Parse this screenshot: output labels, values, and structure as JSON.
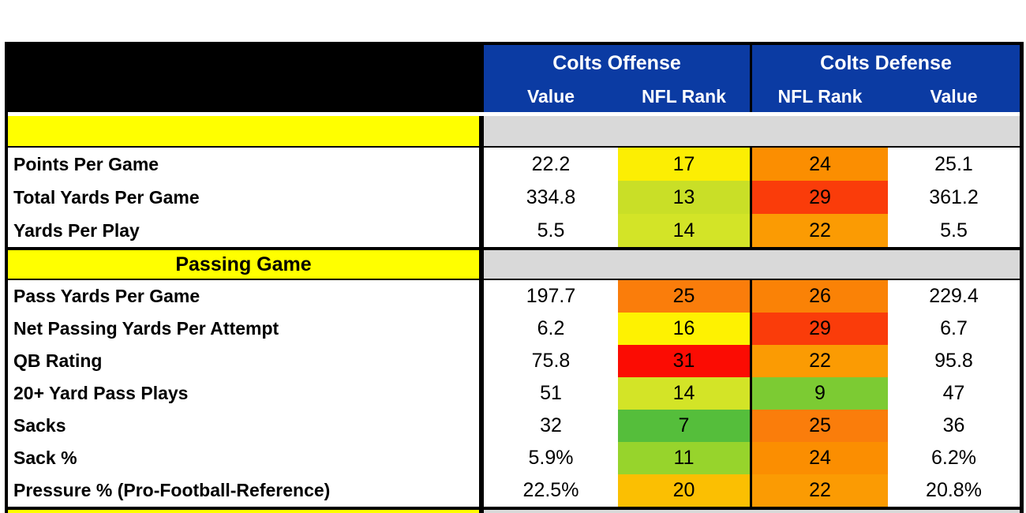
{
  "chart_data": {
    "type": "table",
    "column_groups": [
      {
        "title": "Colts Offense",
        "columns": [
          "Value",
          "NFL Rank"
        ]
      },
      {
        "title": "Colts Defense",
        "columns": [
          "NFL Rank",
          "Value"
        ]
      }
    ],
    "colors": {
      "header_blue": "#0B3BA3",
      "section_label_yellow": "#FFFF00",
      "section_body_gray": "#D9D9D9",
      "frame_black": "#000000"
    },
    "sections": [
      {
        "label": "",
        "rows": [
          {
            "label": "Points Per Game",
            "off_value": "22.2",
            "off_rank": "17",
            "off_rank_color": "#FCEE03",
            "def_rank": "24",
            "def_rank_color": "#FB8E01",
            "def_value": "25.1"
          },
          {
            "label": "Total Yards Per Game",
            "off_value": "334.8",
            "off_rank": "13",
            "off_rank_color": "#C9DF27",
            "def_rank": "29",
            "def_rank_color": "#FA3C0A",
            "def_value": "361.2"
          },
          {
            "label": "Yards Per Play",
            "off_value": "5.5",
            "off_rank": "14",
            "off_rank_color": "#D3E427",
            "def_rank": "22",
            "def_rank_color": "#FB9B03",
            "def_value": "5.5"
          }
        ]
      },
      {
        "label": "Passing Game",
        "rows": [
          {
            "label": "Pass Yards Per Game",
            "off_value": "197.7",
            "off_rank": "25",
            "off_rank_color": "#FA7D0B",
            "def_rank": "26",
            "def_rank_color": "#FA8206",
            "def_value": "229.4"
          },
          {
            "label": "Net Passing Yards Per Attempt",
            "off_value": "6.2",
            "off_rank": "16",
            "off_rank_color": "#FEF201",
            "def_rank": "29",
            "def_rank_color": "#FA3C0A",
            "def_value": "6.7"
          },
          {
            "label": "QB Rating",
            "off_value": "75.8",
            "off_rank": "31",
            "off_rank_color": "#FB0C03",
            "def_rank": "22",
            "def_rank_color": "#FB9B03",
            "def_value": "95.8"
          },
          {
            "label": "20+ Yard Pass Plays",
            "off_value": "51",
            "off_rank": "14",
            "off_rank_color": "#D3E427",
            "def_rank": "9",
            "def_rank_color": "#7CCB33",
            "def_value": "47"
          },
          {
            "label": "Sacks",
            "off_value": "32",
            "off_rank": "7",
            "off_rank_color": "#55BE3B",
            "def_rank": "25",
            "def_rank_color": "#FA7D0B",
            "def_value": "36"
          },
          {
            "label": "Sack %",
            "off_value": "5.9%",
            "off_rank": "11",
            "off_rank_color": "#97D42C",
            "def_rank": "24",
            "def_rank_color": "#FB8E01",
            "def_value": "6.2%"
          },
          {
            "label": "Pressure % (Pro-Football-Reference)",
            "off_value": "22.5%",
            "off_rank": "20",
            "off_rank_color": "#FBBF02",
            "def_rank": "22",
            "def_rank_color": "#FB9B03",
            "def_value": "20.8%"
          }
        ]
      },
      {
        "label": "",
        "partial": true,
        "rows": []
      }
    ]
  }
}
